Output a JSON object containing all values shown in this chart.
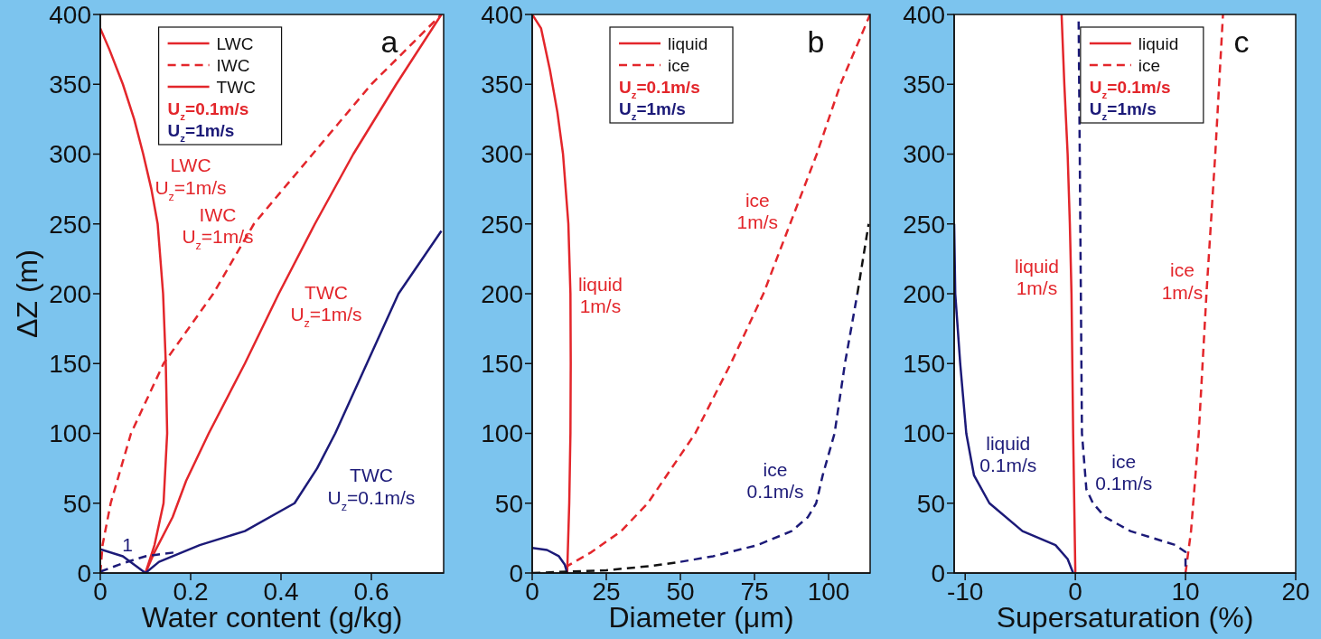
{
  "chart_data": [
    {
      "type": "line",
      "title": "a",
      "xlabel": "Water content (g/kg)",
      "ylabel": "ΔZ (m)",
      "xlim": [
        0,
        0.76
      ],
      "xticks": [
        0,
        0.2,
        0.4,
        0.6
      ],
      "ylim": [
        0,
        400
      ],
      "yticks": [
        0,
        50,
        100,
        150,
        200,
        250,
        300,
        350,
        400
      ],
      "legend": "top",
      "grid": false,
      "marker": "none",
      "series": [
        {
          "name": "LWC",
          "color": "#e3262b",
          "line_style": "solid",
          "x": [
            0,
            0.02,
            0.05,
            0.075,
            0.095,
            0.113,
            0.127,
            0.139,
            0.145,
            0.148,
            0.14,
            0.12,
            0.1
          ],
          "values": [
            390,
            375,
            350,
            325,
            300,
            275,
            250,
            200,
            150,
            100,
            50,
            20,
            0
          ]
        },
        {
          "name": "IWC",
          "color": "#e3262b",
          "line_style": "dashed",
          "x": [
            0,
            0.005,
            0.023,
            0.068,
            0.14,
            0.25,
            0.34,
            0.47,
            0.6,
            0.755
          ],
          "values": [
            0,
            20,
            50,
            100,
            150,
            200,
            250,
            300,
            350,
            400
          ]
        },
        {
          "name": "TWC",
          "color": "#e3262b",
          "line_style": "solid",
          "x": [
            0.1,
            0.12,
            0.16,
            0.19,
            0.24,
            0.32,
            0.395,
            0.475,
            0.56,
            0.655,
            0.755
          ],
          "values": [
            0,
            15,
            40,
            66,
            100,
            150,
            200,
            250,
            300,
            350,
            400
          ]
        },
        {
          "color": "#1c1a78",
          "line_style": "solid",
          "x": [
            0.1,
            0.13,
            0.22,
            0.32,
            0.43,
            0.48,
            0.52,
            0.59,
            0.66,
            0.755
          ],
          "values": [
            0,
            8,
            20,
            30,
            50,
            75,
            100,
            150,
            200,
            245
          ]
        },
        {
          "color": "#1c1a78",
          "line_style": "solid",
          "x": [
            0,
            0.05,
            0.1
          ],
          "values": [
            17,
            12,
            0
          ]
        },
        {
          "color": "#1c1a78",
          "line_style": "dashed",
          "x": [
            0,
            0.05,
            0.1,
            0.17
          ],
          "values": [
            1,
            7,
            12,
            15
          ]
        }
      ],
      "annotations": [
        "U$_{z}$=0.1m/s",
        "U$_{z}$=1m/s",
        "LWC\nU$_{z}$=1m/s",
        "IWC\nU$_{z}$=1m/s",
        "TWC\nU$_{z}$=1m/s",
        "TWC\nU$_{z}$=0.1m/s",
        "1"
      ]
    },
    {
      "type": "line",
      "title": "b",
      "xlabel": "Diameter (μm)",
      "xlim": [
        0,
        114
      ],
      "xticks": [
        0,
        25,
        50,
        75,
        100
      ],
      "ylim": [
        0,
        400
      ],
      "yticks": [
        0,
        50,
        100,
        150,
        200,
        250,
        300,
        350,
        400
      ],
      "legend": "top",
      "grid": false,
      "marker": "none",
      "series": [
        {
          "name": "liquid",
          "color": "#e3262b",
          "line_style": "solid",
          "x": [
            0,
            3,
            6,
            8.5,
            10.4,
            12.2,
            12.9,
            13,
            12.9,
            12.5,
            11.8
          ],
          "values": [
            400,
            390,
            360,
            330,
            300,
            250,
            200,
            150,
            100,
            50,
            0
          ]
        },
        {
          "name": "ice",
          "color": "#e3262b",
          "line_style": "dashed",
          "x": [
            11,
            20,
            30,
            39,
            55,
            67,
            78,
            87,
            96,
            104,
            114
          ],
          "values": [
            4,
            15,
            30,
            50,
            100,
            150,
            200,
            250,
            300,
            350,
            400
          ]
        },
        {
          "color": "#1c1a78",
          "line_style": "solid",
          "x": [
            0,
            5,
            9,
            11,
            11.8
          ],
          "values": [
            18,
            16.5,
            12,
            6,
            0
          ]
        },
        {
          "color": "#1c1a78",
          "line_style": "dashed",
          "x": [
            50,
            61,
            76,
            87.5,
            93,
            95.8,
            98,
            102,
            105.5,
            109.7
          ],
          "values": [
            8,
            12,
            20,
            30,
            40,
            50,
            70,
            100,
            150,
            200
          ]
        },
        {
          "color": "#111111",
          "line_style": "dashed",
          "x": [
            0,
            25,
            40,
            50,
            80,
            109.7,
            113.5
          ],
          "values": [
            0,
            2,
            5,
            8,
            null,
            200,
            250
          ]
        }
      ],
      "annotations": [
        "U$_{z}$=0.1m/s",
        "U$_{z}$=1m/s",
        "liquid\n1m/s",
        "ice\n1m/s",
        "ice\n0.1m/s"
      ]
    },
    {
      "type": "line",
      "title": "c",
      "xlabel": "Supersaturation (%)",
      "xlim": [
        -11,
        20
      ],
      "xticks": [
        -10,
        0,
        10,
        20
      ],
      "ylim": [
        0,
        400
      ],
      "yticks": [
        0,
        50,
        100,
        150,
        200,
        250,
        300,
        350,
        400
      ],
      "legend": "top right",
      "grid": false,
      "marker": "none",
      "series": [
        {
          "name": "liquid",
          "color": "#e3262b",
          "line_style": "solid",
          "x": [
            -1.25,
            -1,
            -0.7,
            -0.5,
            -0.35,
            -0.2,
            0
          ],
          "values": [
            400,
            350,
            300,
            250,
            200,
            100,
            0
          ]
        },
        {
          "name": "ice",
          "color": "#e3262b",
          "line_style": "dashed",
          "x": [
            10,
            10.5,
            11.2,
            11.9,
            12.7,
            13.4
          ],
          "values": [
            0,
            30,
            100,
            200,
            300,
            400
          ]
        },
        {
          "color": "#1c1a78",
          "line_style": "solid",
          "x": [
            -11,
            -10.9,
            -10.45,
            -9.9,
            -9.2,
            -7.8,
            -4.8,
            -1.8,
            -0.7,
            -0.2
          ],
          "values": [
            250,
            200,
            150,
            100,
            70,
            50,
            30,
            20,
            10,
            0
          ]
        },
        {
          "color": "#1c1a78",
          "line_style": "dashed",
          "x": [
            0.3,
            0.4,
            0.5,
            0.6,
            1,
            1.6,
            2.7,
            5,
            9.1,
            10,
            10
          ],
          "values": [
            395,
            300,
            200,
            100,
            60,
            50,
            40,
            30,
            20,
            15,
            0
          ]
        }
      ],
      "annotations": [
        "U$_{z}$=0.1m/s",
        "U$_{z}$=1m/s",
        "liquid\n1m/s",
        "ice\n1m/s",
        "liquid\n0.1m/s",
        "ice\n0.1m/s"
      ]
    }
  ]
}
